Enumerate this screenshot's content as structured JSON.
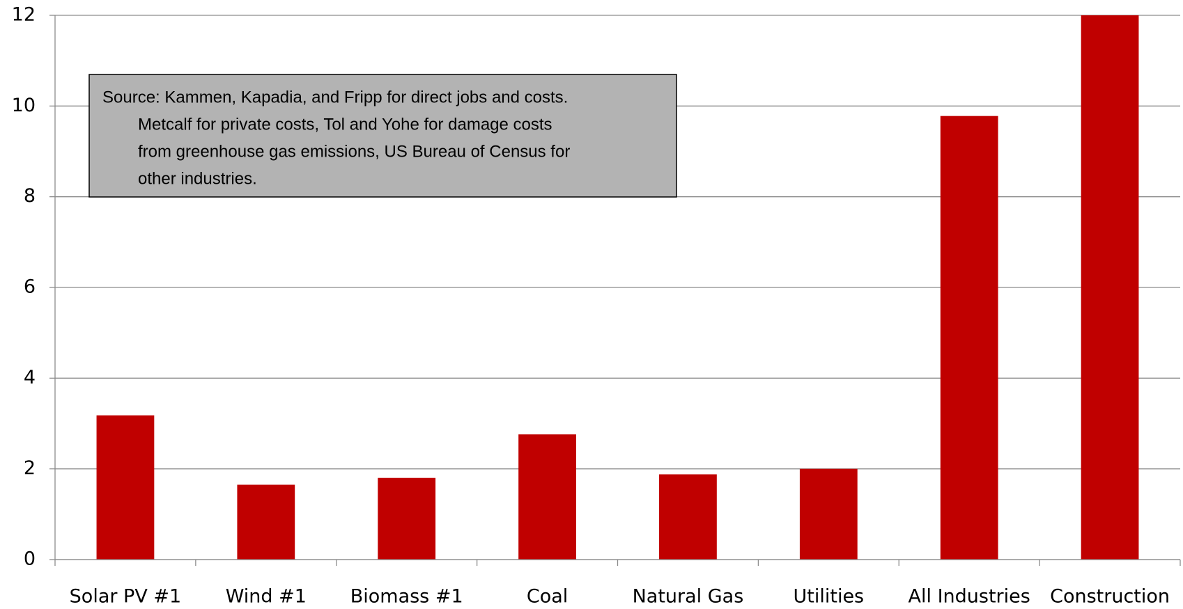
{
  "chart_data": {
    "type": "bar",
    "categories": [
      "Solar PV #1",
      "Wind #1",
      "Biomass #1",
      "Coal",
      "Natural Gas",
      "Utilities",
      "All Industries",
      "Construction"
    ],
    "values": [
      3.18,
      1.65,
      1.8,
      2.76,
      1.88,
      2.0,
      9.78,
      12
    ],
    "color": "#c00000",
    "ylim": [
      0,
      12
    ],
    "yticks": [
      0,
      2,
      4,
      6,
      8,
      10,
      12
    ],
    "grid": true,
    "annotation": [
      "Source: Kammen, Kapadia, and Fripp for direct jobs and costs.",
      "Metcalf for private costs, Tol and Yohe for  damage  costs",
      "from  greenhouse gas emissions, US Bureau of Census for",
      "other industries."
    ]
  }
}
